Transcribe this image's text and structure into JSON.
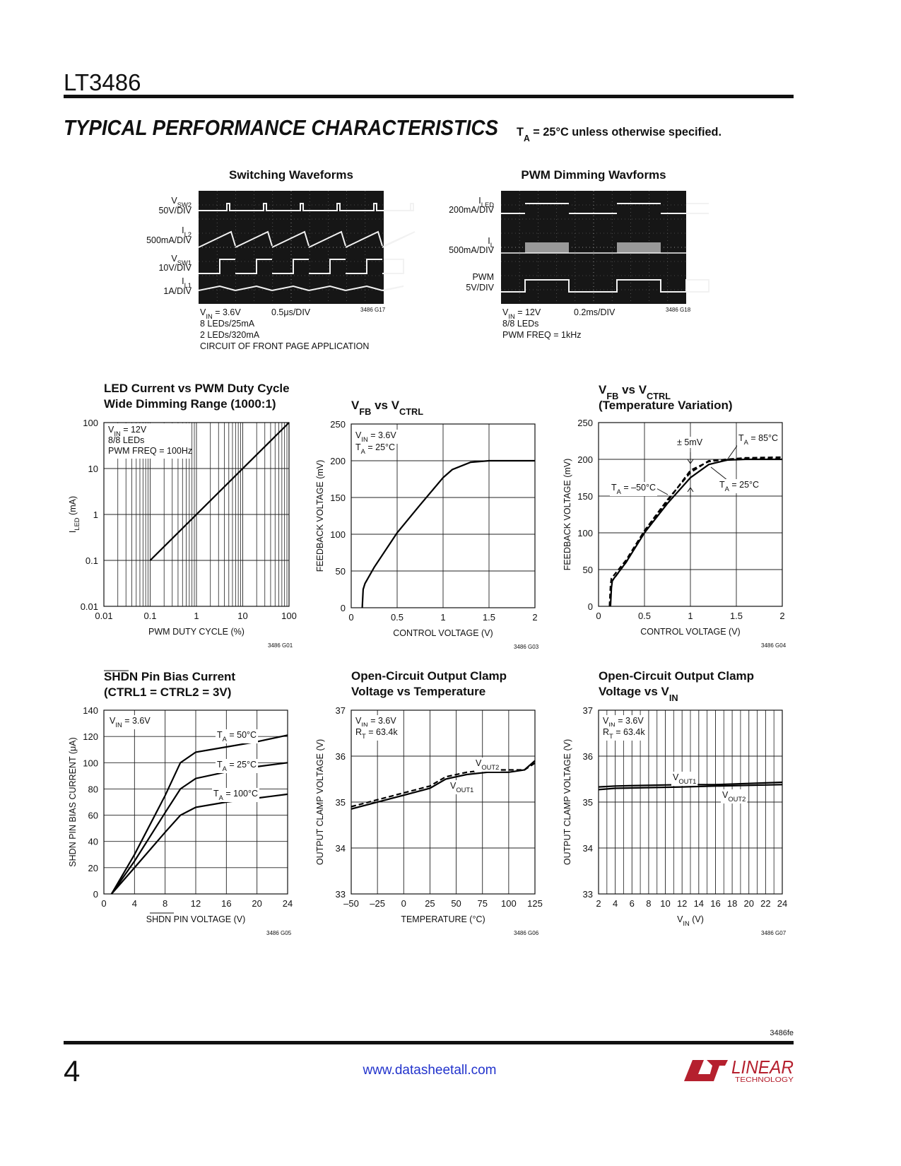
{
  "header": {
    "part": "LT3486",
    "section": "TYPICAL PERFORMANCE CHARACTERISTICS",
    "condition": [
      "T",
      "A",
      " = 25°C unless otherwise specified."
    ]
  },
  "scopes": [
    {
      "title": "Switching Waveforms",
      "channels": [
        {
          "name": [
            "V",
            "SW2"
          ],
          "scale": "50V/DIV"
        },
        {
          "name": [
            "I",
            "L2"
          ],
          "scale": "500mA/DIV"
        },
        {
          "name": [
            "V",
            "SW1"
          ],
          "scale": "10V/DIV"
        },
        {
          "name": [
            "I",
            "L1"
          ],
          "scale": "1A/DIV"
        }
      ],
      "notes": [
        [
          "V",
          "IN",
          " = 3.6V"
        ],
        "8 LEDs/25mA",
        "2 LEDs/320mA",
        "CIRCUIT OF FRONT PAGE APPLICATION"
      ],
      "timebase": "0.5μs/DIV",
      "code": "3486 G17"
    },
    {
      "title": "PWM Dimming Wavforms",
      "channels": [
        {
          "name": [
            "I",
            "LED"
          ],
          "scale": "200mA/DIV"
        },
        {
          "name": [
            "I",
            "L"
          ],
          "scale": "500mA/DIV"
        },
        {
          "name": "PWM",
          "scale": "5V/DIV"
        }
      ],
      "notes": [
        [
          "V",
          "IN",
          " = 12V"
        ],
        "8/8 LEDs",
        "PWM FREQ = 1kHz"
      ],
      "timebase": "0.2ms/DIV",
      "code": "3486 G18"
    }
  ],
  "chart_data": [
    {
      "type": "line",
      "title": [
        "LED Current vs PWM Duty Cycle",
        "Wide Dimming Range (1000:1)"
      ],
      "xscale": "log",
      "yscale": "log",
      "grid": true,
      "minor_grid": true,
      "xlim": [
        0.01,
        100
      ],
      "ylim": [
        0.01,
        100
      ],
      "xticks": [
        0.01,
        0.1,
        1,
        10,
        100
      ],
      "yticks": [
        0.01,
        0.1,
        1,
        10,
        100
      ],
      "xlabel": "PWM DUTY CYCLE (%)",
      "ylabel": [
        "I",
        "LED",
        " (mA)"
      ],
      "annotations": [
        [
          "V",
          "IN",
          " = 12V"
        ],
        "8/8 LEDs",
        "PWM FREQ = 100Hz"
      ],
      "series": [
        {
          "color": "#000000",
          "style": "solid",
          "x": [
            0.1,
            100
          ],
          "values": [
            0.1,
            100
          ]
        }
      ],
      "code": "3486 G01"
    },
    {
      "type": "line",
      "title": [
        [
          "V",
          "FB",
          " vs V",
          "CTRL"
        ]
      ],
      "grid": true,
      "xlim": [
        0,
        2
      ],
      "ylim": [
        0,
        250
      ],
      "xticks": [
        0,
        0.5,
        1,
        1.5,
        2
      ],
      "yticks": [
        0,
        50,
        100,
        150,
        200,
        250
      ],
      "xlabel": "CONTROL VOLTAGE (V)",
      "ylabel": "FEEDBACK VOLTAGE (mV)",
      "annotations": [
        [
          "V",
          "IN",
          " = 3.6V"
        ],
        [
          "T",
          "A",
          " = 25°C"
        ]
      ],
      "series": [
        {
          "color": "#000000",
          "style": "solid",
          "x": [
            0.12,
            0.13,
            0.15,
            0.25,
            0.5,
            0.75,
            1,
            1.1,
            1.3,
            1.5,
            2
          ],
          "values": [
            0,
            25,
            33,
            55,
            102,
            140,
            177,
            188,
            198,
            200,
            200
          ]
        }
      ],
      "code": "3486 G03"
    },
    {
      "type": "line",
      "title": [
        [
          "V",
          "FB",
          "  vs V",
          "CTRL"
        ],
        "(Temperature Variation)"
      ],
      "grid": true,
      "xlim": [
        0,
        2
      ],
      "ylim": [
        0,
        250
      ],
      "xticks": [
        0,
        0.5,
        1,
        1.5,
        2
      ],
      "yticks": [
        0,
        50,
        100,
        150,
        200,
        250
      ],
      "xlabel": "CONTROL VOLTAGE (V)",
      "ylabel": "FEEDBACK VOLTAGE (mV)",
      "annotations": [
        "± 5mV"
      ],
      "series": [
        {
          "name": [
            "T",
            "A",
            " = –50°C"
          ],
          "color": "#000000",
          "style": "dashed",
          "x": [
            0.12,
            0.13,
            0.14,
            0.3,
            0.5,
            0.75,
            1,
            1.2,
            1.4,
            1.6,
            2
          ],
          "values": [
            0,
            28,
            38,
            63,
            103,
            145,
            182,
            198,
            200,
            201,
            201
          ]
        },
        {
          "name": [
            "T",
            "A",
            " = 25°C"
          ],
          "color": "#000000",
          "style": "solid",
          "x": [
            0.13,
            0.14,
            0.15,
            0.3,
            0.5,
            0.75,
            1,
            1.2,
            1.4,
            1.6,
            2
          ],
          "values": [
            0,
            25,
            35,
            60,
            100,
            140,
            175,
            193,
            199,
            200,
            200
          ]
        },
        {
          "name": [
            "T",
            "A",
            " = 85°C"
          ],
          "color": "#000000",
          "style": "dashed",
          "x": [
            0.12,
            0.13,
            0.14,
            0.3,
            0.5,
            0.75,
            1,
            1.2,
            1.4,
            1.6,
            2
          ],
          "values": [
            0,
            22,
            33,
            60,
            102,
            143,
            185,
            197,
            200,
            202,
            203
          ]
        }
      ],
      "code": "3486 G04"
    },
    {
      "type": "line",
      "title": [
        "SHDN Pin Bias Current",
        "(CTRL1 = CTRL2 = 3V)"
      ],
      "grid": true,
      "xlim": [
        0,
        24
      ],
      "ylim": [
        0,
        140
      ],
      "xticks": [
        0,
        4,
        8,
        12,
        16,
        20,
        24
      ],
      "yticks": [
        0,
        20,
        40,
        60,
        80,
        100,
        120,
        140
      ],
      "xlabel": "SHDN PIN VOLTAGE (V)",
      "ylabel": "SHDN PIN BIAS CURRENT (μA)",
      "annotations": [
        [
          "V",
          "IN",
          " = 3.6V"
        ]
      ],
      "series": [
        {
          "name": [
            "T",
            "A",
            " = 50°C"
          ],
          "color": "#000000",
          "style": "solid",
          "x": [
            1,
            4,
            8,
            10,
            12,
            16,
            20,
            24
          ],
          "values": [
            0,
            30,
            75,
            100,
            108,
            112,
            116,
            121
          ]
        },
        {
          "name": [
            "T",
            "A",
            " = 25°C"
          ],
          "color": "#000000",
          "style": "solid",
          "x": [
            1,
            4,
            8,
            10,
            12,
            16,
            20,
            24
          ],
          "values": [
            0,
            25,
            62,
            80,
            88,
            93,
            97,
            100
          ]
        },
        {
          "name": [
            "T",
            "A",
            " = 100°C"
          ],
          "color": "#000000",
          "style": "solid",
          "x": [
            1,
            4,
            8,
            10,
            12,
            16,
            20,
            24
          ],
          "values": [
            0,
            20,
            47,
            60,
            66,
            70,
            73,
            76
          ]
        }
      ],
      "code": "3486 G05"
    },
    {
      "type": "line",
      "title": [
        "Open-Circuit Output Clamp",
        "Voltage vs Temperature"
      ],
      "grid": true,
      "xlim": [
        -50,
        125
      ],
      "ylim": [
        33,
        37
      ],
      "xticks": [
        {
          "value": -50,
          "label": "–50"
        },
        {
          "value": -25,
          "label": "–25"
        },
        0,
        25,
        50,
        75,
        100,
        125
      ],
      "yticks": [
        33,
        34,
        35,
        36,
        37
      ],
      "xlabel": "TEMPERATURE (°C)",
      "ylabel": "OUTPUT CLAMP VOLTAGE (V)",
      "annotations": [
        [
          "V",
          "IN",
          " = 3.6V"
        ],
        [
          "R",
          "T",
          " = 63.4k"
        ]
      ],
      "series": [
        {
          "name": [
            "V",
            "OUT1"
          ],
          "color": "#000000",
          "style": "solid",
          "x": [
            -50,
            0,
            25,
            40,
            60,
            80,
            100,
            115,
            125
          ],
          "values": [
            34.85,
            35.15,
            35.3,
            35.5,
            35.6,
            35.65,
            35.65,
            35.7,
            35.9
          ]
        },
        {
          "name": [
            "V",
            "OUT2"
          ],
          "color": "#000000",
          "style": "dashed",
          "x": [
            -50,
            0,
            25,
            40,
            60,
            80,
            100,
            115,
            125
          ],
          "values": [
            34.9,
            35.2,
            35.35,
            35.55,
            35.65,
            35.7,
            35.7,
            35.7,
            35.85
          ]
        }
      ],
      "code": "3486 G06"
    },
    {
      "type": "line",
      "title": [
        "Open-Circuit Output Clamp",
        [
          "Voltage vs V",
          "IN"
        ]
      ],
      "grid": true,
      "minor_grid": true,
      "xlim": [
        2,
        24
      ],
      "ylim": [
        33,
        37
      ],
      "xticks": [
        2,
        4,
        6,
        8,
        10,
        12,
        14,
        16,
        18,
        20,
        22,
        24
      ],
      "yticks": [
        33,
        34,
        35,
        36,
        37
      ],
      "xlabel": [
        "V",
        "IN",
        " (V)"
      ],
      "ylabel": "OUTPUT CLAMP VOLTAGE (V)",
      "annotations": [
        [
          "V",
          "IN",
          " = 3.6V"
        ],
        [
          "R",
          "T",
          " = 63.4k"
        ]
      ],
      "series": [
        {
          "name": [
            "V",
            "OUT1"
          ],
          "color": "#000000",
          "style": "solid",
          "x": [
            2,
            4,
            12,
            16,
            24
          ],
          "values": [
            35.33,
            35.35,
            35.38,
            35.38,
            35.43
          ]
        },
        {
          "name": [
            "V",
            "OUT2"
          ],
          "color": "#000000",
          "style": "solid",
          "x": [
            2,
            4,
            12,
            16,
            24
          ],
          "values": [
            35.27,
            35.3,
            35.33,
            35.35,
            35.38
          ]
        }
      ],
      "code": "3486 G07"
    }
  ],
  "footer": {
    "doc": "3486fe",
    "page": "4",
    "url": "www.datasheetall.com",
    "logo": "LINEAR",
    "logo_sub": "TECHNOLOGY"
  }
}
